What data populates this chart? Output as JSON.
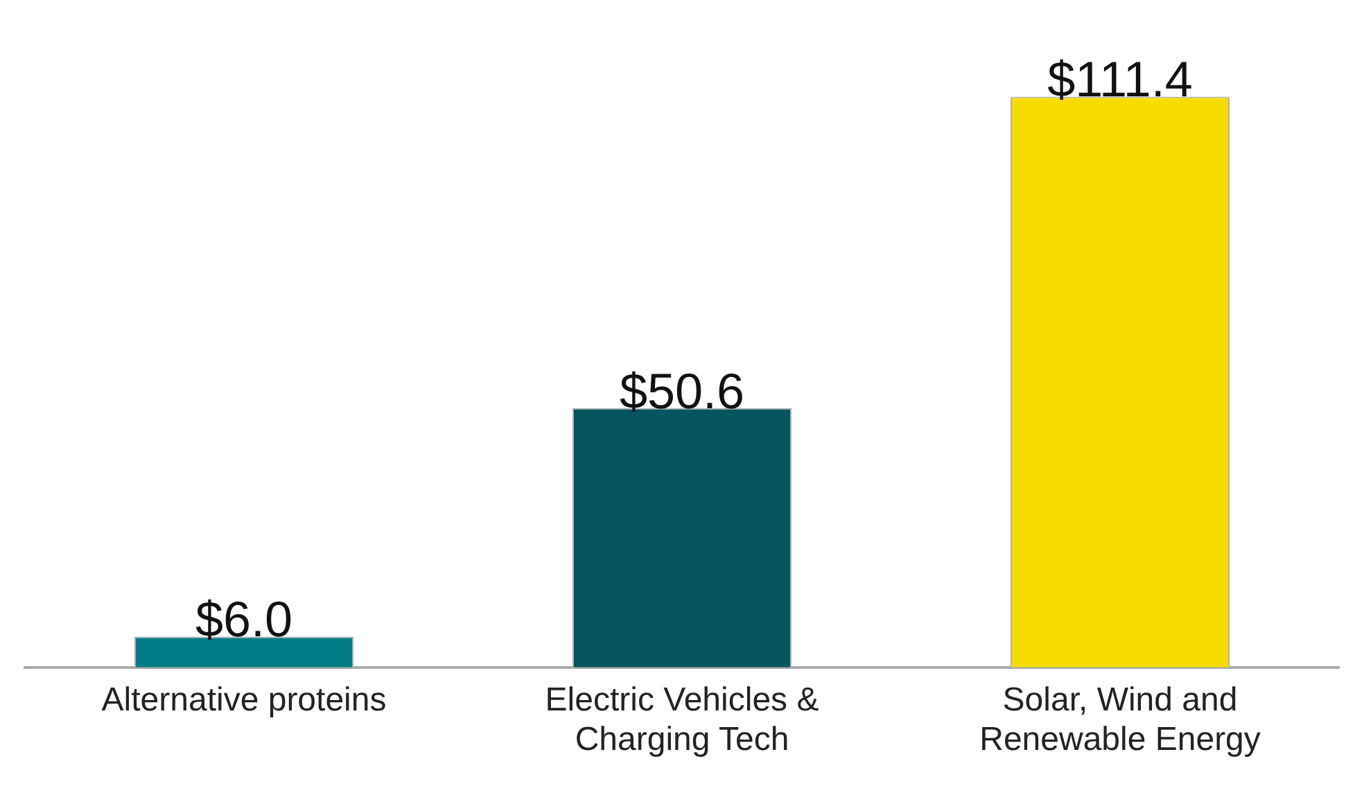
{
  "chart_data": {
    "type": "bar",
    "categories": [
      "Alternative proteins",
      "Electric Vehicles & Charging Tech",
      "Solar, Wind and Renewable Energy"
    ],
    "values": [
      6.0,
      50.6,
      111.4
    ],
    "colors": [
      "#007b87",
      "#02555f",
      "#f7dc00"
    ],
    "value_labels": [
      "$6.0",
      "$50.6",
      "$111.4"
    ],
    "grid": false,
    "legend": false
  }
}
